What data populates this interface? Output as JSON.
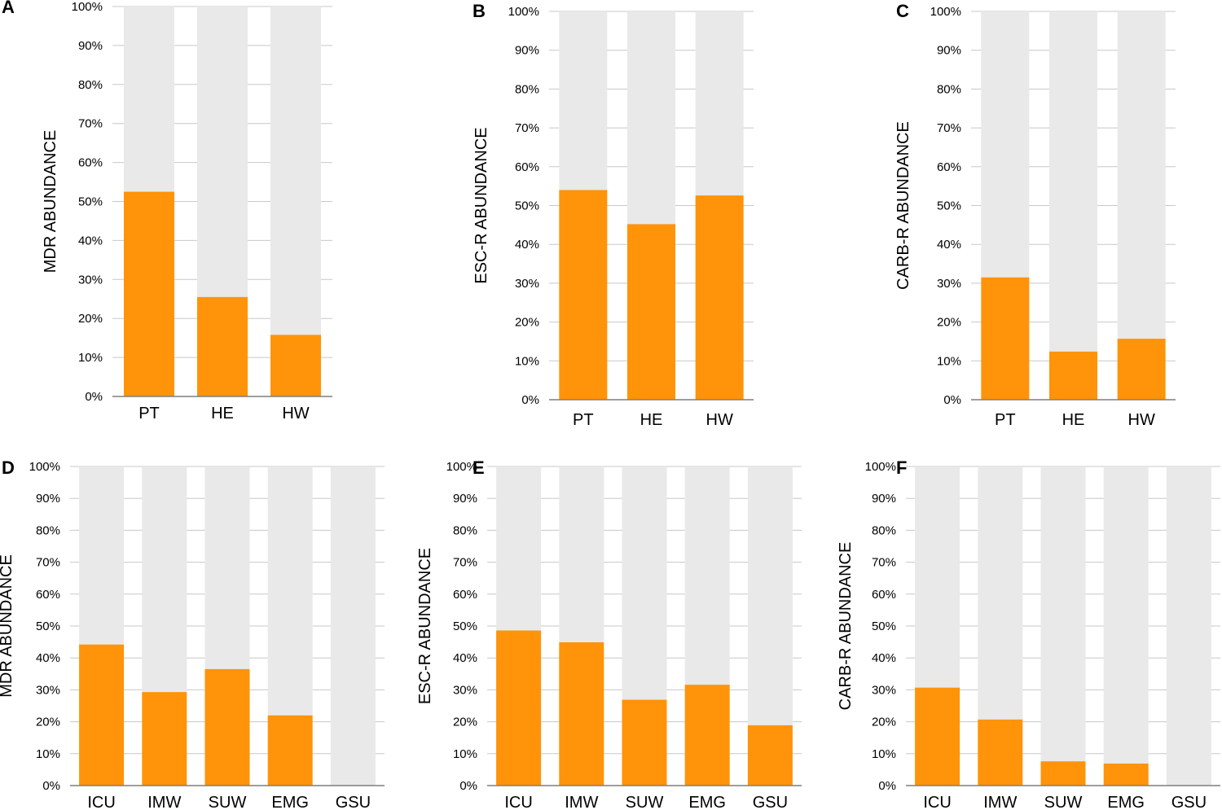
{
  "colors": {
    "value": "#ff9309",
    "remainder": "#e9e9e9"
  },
  "chart_data": [
    {
      "type": "bar",
      "panel": "A",
      "stacked_to_100": true,
      "categories": [
        "PT",
        "HE",
        "HW"
      ],
      "values": [
        52.5,
        25.5,
        15.8
      ],
      "ylabel": "MDR ABUNDANCE",
      "ylim": [
        0,
        100
      ],
      "yticks": [
        "0%",
        "10%",
        "20%",
        "30%",
        "40%",
        "50%",
        "60%",
        "70%",
        "80%",
        "90%",
        "100%"
      ],
      "grid": true
    },
    {
      "type": "bar",
      "panel": "B",
      "stacked_to_100": true,
      "categories": [
        "PT",
        "HE",
        "HW"
      ],
      "values": [
        54.0,
        45.2,
        52.6
      ],
      "ylabel": "ESC-R ABUNDANCE",
      "ylim": [
        0,
        100
      ],
      "yticks": [
        "0%",
        "10%",
        "20%",
        "30%",
        "40%",
        "50%",
        "60%",
        "70%",
        "80%",
        "90%",
        "100%"
      ],
      "grid": true
    },
    {
      "type": "bar",
      "panel": "C",
      "stacked_to_100": true,
      "categories": [
        "PT",
        "HE",
        "HW"
      ],
      "values": [
        31.5,
        12.4,
        15.7
      ],
      "ylabel": "CARB-R ABUNDANCE",
      "ylim": [
        0,
        100
      ],
      "yticks": [
        "0%",
        "10%",
        "20%",
        "30%",
        "40%",
        "50%",
        "60%",
        "70%",
        "80%",
        "90%",
        "100%"
      ],
      "grid": true
    },
    {
      "type": "bar",
      "panel": "D",
      "stacked_to_100": true,
      "categories": [
        "ICU",
        "IMW",
        "SUW",
        "EMG",
        "GSU"
      ],
      "values": [
        44.2,
        29.3,
        36.5,
        22.0,
        0
      ],
      "ylabel": "MDR ABUNDANCE",
      "ylim": [
        0,
        100
      ],
      "yticks": [
        "0%",
        "10%",
        "20%",
        "30%",
        "40%",
        "50%",
        "60%",
        "70%",
        "80%",
        "90%",
        "100%"
      ],
      "grid": true
    },
    {
      "type": "bar",
      "panel": "E",
      "stacked_to_100": true,
      "categories": [
        "ICU",
        "IMW",
        "SUW",
        "EMG",
        "GSU"
      ],
      "values": [
        48.6,
        44.9,
        26.9,
        31.6,
        18.9
      ],
      "ylabel": "ESC-R ABUNDANCE",
      "ylim": [
        0,
        100
      ],
      "yticks": [
        "0%",
        "10%",
        "20%",
        "30%",
        "40%",
        "50%",
        "60%",
        "70%",
        "80%",
        "90%",
        "100%"
      ],
      "grid": true
    },
    {
      "type": "bar",
      "panel": "F",
      "stacked_to_100": true,
      "categories": [
        "ICU",
        "IMW",
        "SUW",
        "EMG",
        "GSU"
      ],
      "values": [
        30.7,
        20.7,
        7.6,
        6.9,
        0
      ],
      "ylabel": "CARB-R ABUNDANCE",
      "ylim": [
        0,
        100
      ],
      "yticks": [
        "0%",
        "10%",
        "20%",
        "30%",
        "40%",
        "50%",
        "60%",
        "70%",
        "80%",
        "90%",
        "100%"
      ],
      "grid": true
    }
  ]
}
